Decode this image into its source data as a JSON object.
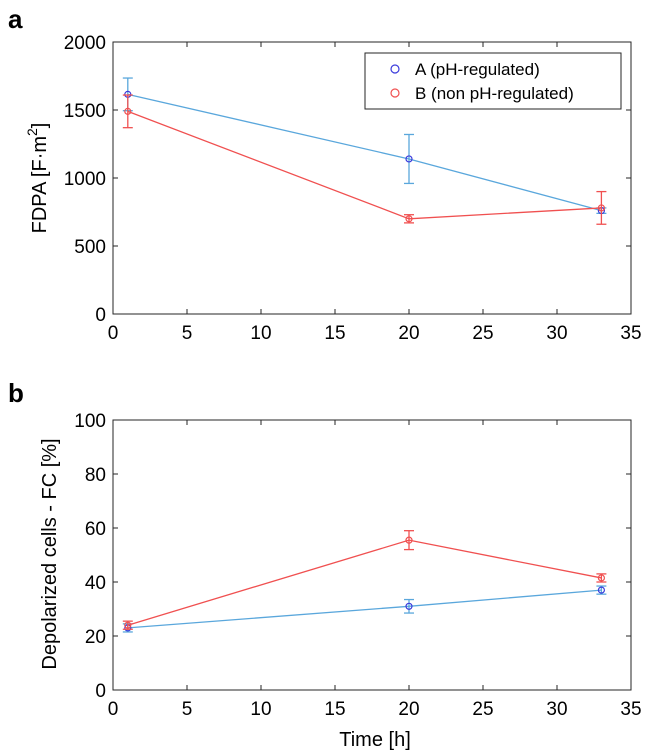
{
  "figure": {
    "panels": [
      "a",
      "b"
    ]
  },
  "chart_data": [
    {
      "panel": "a",
      "type": "line",
      "xlabel": "",
      "ylabel": "FDPA [F·m",
      "ylabel_superscript": "2",
      "ylabel_close": "]",
      "xlim": [
        0,
        35
      ],
      "ylim": [
        0,
        2000
      ],
      "xticks": [
        0,
        5,
        10,
        15,
        20,
        25,
        30,
        35
      ],
      "yticks": [
        0,
        500,
        1000,
        1500,
        2000
      ],
      "grid": false,
      "legend": "top-right",
      "series": [
        {
          "name": "A (pH-regulated)",
          "line_color": "#5aa7dc",
          "marker_color": "#3b3bdc",
          "x": [
            1,
            20,
            33
          ],
          "y": [
            1615,
            1140,
            760
          ],
          "err": [
            120,
            180,
            20
          ]
        },
        {
          "name": "B (non pH-regulated)",
          "line_color": "#f05050",
          "marker_color": "#f05050",
          "x": [
            1,
            20,
            33
          ],
          "y": [
            1490,
            700,
            780
          ],
          "err": [
            120,
            30,
            120
          ]
        }
      ]
    },
    {
      "panel": "b",
      "type": "line",
      "xlabel": "Time [h]",
      "ylabel": "Depolarized cells - FC [%]",
      "xlim": [
        0,
        35
      ],
      "ylim": [
        0,
        100
      ],
      "xticks": [
        0,
        5,
        10,
        15,
        20,
        25,
        30,
        35
      ],
      "yticks": [
        0,
        20,
        40,
        60,
        80,
        100
      ],
      "grid": false,
      "series": [
        {
          "line_color": "#5aa7dc",
          "marker_color": "#3b3bdc",
          "x": [
            1,
            20,
            33
          ],
          "y": [
            23,
            31,
            37
          ],
          "err": [
            1.5,
            2.5,
            1.5
          ]
        },
        {
          "line_color": "#f05050",
          "marker_color": "#f05050",
          "x": [
            1,
            20,
            33
          ],
          "y": [
            24,
            55.5,
            41.5
          ],
          "err": [
            1.5,
            3.5,
            1.5
          ]
        }
      ]
    }
  ]
}
